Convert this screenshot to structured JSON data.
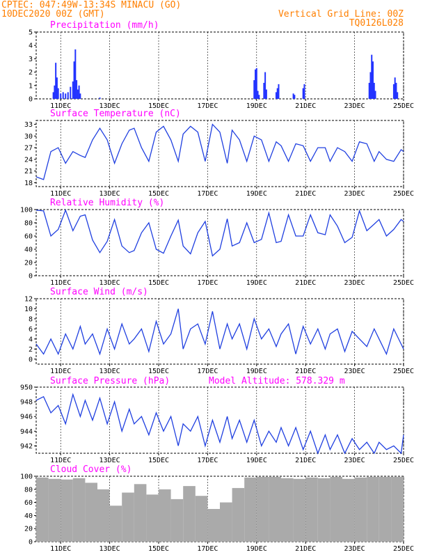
{
  "header": {
    "line1": "CPTEC:   047:49W-13:34S   MINACU (GO)",
    "line2": "10DEC2020 00Z (GMT)",
    "right1": "Vertical Grid Line: 00Z",
    "right2": "TQ0126L028"
  },
  "colors": {
    "header": "#ff7f00",
    "title": "#ff00ff",
    "series": "#1f3fe0",
    "bars": "#2233ff",
    "cloud": "#aaaaaa"
  },
  "x_axis": {
    "start_day": 10,
    "end_day": 25,
    "tick_labels": [
      {
        "label": "11DEC",
        "day": 11
      },
      {
        "label": "13DEC",
        "day": 13
      },
      {
        "label": "15DEC",
        "day": 15
      },
      {
        "label": "17DEC",
        "day": 17
      },
      {
        "label": "19DEC",
        "day": 19
      },
      {
        "label": "21DEC",
        "day": 21
      },
      {
        "label": "23DEC",
        "day": 23
      },
      {
        "label": "25DEC",
        "day": 25
      }
    ]
  },
  "chart_data": [
    {
      "type": "bar",
      "title": "Precipitation (mm/h)",
      "ylim": [
        0,
        5
      ],
      "yticks": [
        "0",
        "1",
        "2",
        "3",
        "4",
        "5"
      ],
      "x_day": [
        10.7,
        10.75,
        10.8,
        10.85,
        10.9,
        11.0,
        11.1,
        11.2,
        11.3,
        11.4,
        11.5,
        11.55,
        11.6,
        11.65,
        11.7,
        11.75,
        11.8,
        12.6,
        18.9,
        18.95,
        19.0,
        19.05,
        19.1,
        19.3,
        19.35,
        19.4,
        19.8,
        19.85,
        19.9,
        20.5,
        20.55,
        20.9,
        20.95,
        23.6,
        23.65,
        23.7,
        23.75,
        23.8,
        23.85,
        24.6,
        24.65,
        24.7,
        24.75
      ],
      "values": [
        0.5,
        1.0,
        2.7,
        1.6,
        0.8,
        0.4,
        0.5,
        0.4,
        0.5,
        0.9,
        1.3,
        2.8,
        3.7,
        1.4,
        0.7,
        1.0,
        0.4,
        0.1,
        1.4,
        2.2,
        2.3,
        0.6,
        0.3,
        1.2,
        2.0,
        0.7,
        0.5,
        0.8,
        1.1,
        0.4,
        0.3,
        0.8,
        1.1,
        1.2,
        2.0,
        3.3,
        2.8,
        1.2,
        0.6,
        1.1,
        1.6,
        1.2,
        0.5
      ]
    },
    {
      "type": "line",
      "title": "Surface Temperature (nC)",
      "ylim": [
        17,
        34
      ],
      "yticks": [
        "18",
        "21",
        "24",
        "27",
        "30",
        "33"
      ],
      "x_day": [
        10.0,
        10.3,
        10.6,
        10.9,
        11.2,
        11.5,
        11.8,
        12.0,
        12.3,
        12.6,
        12.9,
        13.2,
        13.5,
        13.8,
        14.0,
        14.3,
        14.6,
        14.9,
        15.2,
        15.5,
        15.8,
        16.0,
        16.3,
        16.6,
        16.9,
        17.2,
        17.5,
        17.8,
        18.0,
        18.3,
        18.6,
        18.9,
        19.2,
        19.5,
        19.8,
        20.0,
        20.3,
        20.6,
        20.9,
        21.2,
        21.5,
        21.8,
        22.0,
        22.3,
        22.6,
        22.9,
        23.2,
        23.5,
        23.8,
        24.0,
        24.3,
        24.6,
        24.9,
        25.0
      ],
      "values": [
        19.5,
        18.8,
        26,
        27,
        23,
        26,
        25,
        24.5,
        29,
        32,
        29,
        23,
        28,
        31.5,
        32,
        27,
        23.5,
        31,
        32.5,
        29,
        23.5,
        30.5,
        32.5,
        31,
        23.5,
        33,
        31,
        23,
        31.5,
        29,
        23.5,
        30,
        29,
        23.5,
        28.5,
        27.5,
        23.5,
        28,
        27.5,
        23.5,
        27,
        27,
        23.5,
        27,
        26,
        23.5,
        28.5,
        28,
        23.5,
        26,
        24,
        23.5,
        26.5,
        26
      ]
    },
    {
      "type": "line",
      "title": "Relative Humidity (%)",
      "ylim": [
        0,
        100
      ],
      "yticks": [
        "0",
        "20",
        "40",
        "60",
        "80",
        "100"
      ],
      "x_day": [
        10.0,
        10.3,
        10.6,
        10.9,
        11.2,
        11.5,
        11.8,
        12.0,
        12.3,
        12.6,
        12.9,
        13.2,
        13.5,
        13.8,
        14.0,
        14.3,
        14.6,
        14.9,
        15.2,
        15.5,
        15.8,
        16.0,
        16.3,
        16.6,
        16.9,
        17.2,
        17.5,
        17.8,
        18.0,
        18.3,
        18.6,
        18.9,
        19.2,
        19.5,
        19.8,
        20.0,
        20.3,
        20.6,
        20.9,
        21.2,
        21.5,
        21.8,
        22.0,
        22.3,
        22.6,
        22.9,
        23.2,
        23.5,
        23.8,
        24.0,
        24.3,
        24.6,
        24.9,
        25.0
      ],
      "values": [
        99,
        98,
        60,
        70,
        99,
        68,
        90,
        92,
        54,
        35,
        52,
        85,
        45,
        35,
        38,
        65,
        80,
        40,
        34,
        60,
        84,
        45,
        33,
        65,
        82,
        30,
        40,
        86,
        45,
        50,
        80,
        50,
        55,
        95,
        50,
        52,
        92,
        60,
        60,
        92,
        65,
        62,
        92,
        75,
        50,
        58,
        98,
        68,
        78,
        85,
        60,
        70,
        85,
        82
      ]
    },
    {
      "type": "line",
      "title": "Surface Wind (m/s)",
      "ylim": [
        -1,
        12
      ],
      "yticks": [
        "0",
        "2",
        "4",
        "6",
        "8",
        "10",
        "12"
      ],
      "x_day": [
        10.0,
        10.3,
        10.6,
        10.9,
        11.2,
        11.5,
        11.8,
        12.0,
        12.3,
        12.6,
        12.9,
        13.2,
        13.5,
        13.8,
        14.0,
        14.3,
        14.6,
        14.9,
        15.2,
        15.5,
        15.8,
        16.0,
        16.3,
        16.6,
        16.9,
        17.2,
        17.5,
        17.8,
        18.0,
        18.3,
        18.6,
        18.9,
        19.2,
        19.5,
        19.8,
        20.0,
        20.3,
        20.6,
        20.9,
        21.2,
        21.5,
        21.8,
        22.0,
        22.3,
        22.6,
        22.9,
        23.2,
        23.5,
        23.8,
        24.0,
        24.3,
        24.6,
        24.9,
        25.0
      ],
      "values": [
        3,
        1,
        4,
        1,
        5,
        2,
        6.5,
        3,
        5,
        1,
        6,
        2,
        7,
        3,
        4,
        6,
        1.5,
        7.5,
        3,
        5,
        10,
        2,
        6,
        7,
        3,
        9.5,
        2,
        7,
        4,
        7,
        2,
        8,
        4,
        6,
        2.5,
        5,
        7,
        1,
        6.5,
        3,
        6,
        2,
        5,
        6,
        1.5,
        5.5,
        4,
        2.5,
        6,
        4,
        1,
        6,
        3,
        2
      ]
    },
    {
      "type": "line",
      "title": "Surface Pressure (hPa)",
      "annotation": "Model Altitude: 578.329 m",
      "ylim": [
        941,
        950
      ],
      "yticks": [
        "942",
        "944",
        "946",
        "948",
        "950"
      ],
      "x_day": [
        10.0,
        10.3,
        10.6,
        10.9,
        11.2,
        11.5,
        11.8,
        12.0,
        12.3,
        12.6,
        12.9,
        13.2,
        13.5,
        13.8,
        14.0,
        14.3,
        14.6,
        14.9,
        15.2,
        15.5,
        15.8,
        16.0,
        16.3,
        16.6,
        16.9,
        17.2,
        17.5,
        17.8,
        18.0,
        18.3,
        18.6,
        18.9,
        19.2,
        19.5,
        19.8,
        20.0,
        20.3,
        20.6,
        20.9,
        21.2,
        21.5,
        21.8,
        22.0,
        22.3,
        22.6,
        22.9,
        23.2,
        23.5,
        23.8,
        24.0,
        24.3,
        24.6,
        24.9,
        25.0
      ],
      "values": [
        948.2,
        948.7,
        946.5,
        947.5,
        945.0,
        949.0,
        946.0,
        948.2,
        945.5,
        948.5,
        945.0,
        948.0,
        944.0,
        947.0,
        945.0,
        946.0,
        943.5,
        946.5,
        944.0,
        946.0,
        942.0,
        945.0,
        944.0,
        946.0,
        942.0,
        945.5,
        942.5,
        946.0,
        943.0,
        945.5,
        942.5,
        945.5,
        942.0,
        944.0,
        942.5,
        944.5,
        942.0,
        944.5,
        941.5,
        944.0,
        941.0,
        943.5,
        941.5,
        943.5,
        941.0,
        943.0,
        941.5,
        942.5,
        941.0,
        942.5,
        941.5,
        942.0,
        941.0,
        943.5
      ]
    },
    {
      "type": "bar",
      "title": "Cloud Cover (%)",
      "ylim": [
        0,
        100
      ],
      "yticks": [
        "0",
        "20",
        "40",
        "60",
        "80",
        "100"
      ],
      "x_day": [
        10.0,
        10.5,
        11.0,
        11.5,
        12.0,
        12.5,
        13.0,
        13.5,
        14.0,
        14.5,
        15.0,
        15.5,
        16.0,
        16.5,
        17.0,
        17.5,
        18.0,
        18.5,
        19.0,
        19.5,
        20.0,
        20.5,
        21.0,
        21.5,
        22.0,
        22.5,
        23.0,
        23.5,
        24.0,
        24.5
      ],
      "values": [
        98,
        96,
        95,
        97,
        90,
        80,
        55,
        75,
        88,
        72,
        80,
        65,
        85,
        70,
        50,
        60,
        82,
        98,
        99,
        99,
        97,
        96,
        98,
        97,
        99,
        96,
        98,
        99,
        99,
        99
      ]
    }
  ]
}
